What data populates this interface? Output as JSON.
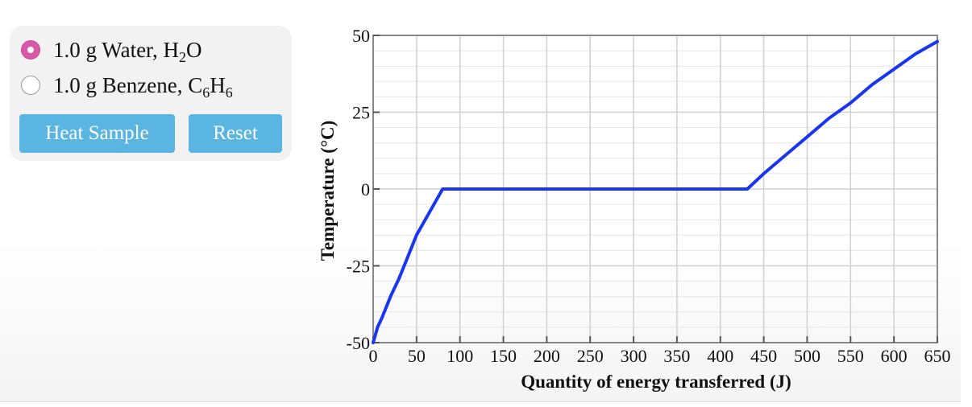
{
  "controls": {
    "options": [
      {
        "label_main": "1.0 g Water, H",
        "sub1": "2",
        "label_tail": "O",
        "sub2": "",
        "label_end": "",
        "selected": true
      },
      {
        "label_main": "1.0 g Benzene, C",
        "sub1": "6",
        "label_tail": "H",
        "sub2": "6",
        "label_end": "",
        "selected": false
      }
    ],
    "heat_button": "Heat Sample",
    "reset_button": "Reset"
  },
  "colors": {
    "radio_selected": "#d858a8",
    "button": "#5bb5e3",
    "series": "#1a35f0",
    "grid": "#d0d0d0"
  },
  "chart_data": {
    "type": "line",
    "xlabel": "Quantity of energy transferred (J)",
    "ylabel": "Temperature (°C)",
    "xlim": [
      0,
      650
    ],
    "ylim": [
      -50,
      50
    ],
    "x_ticks": [
      0,
      50,
      100,
      150,
      200,
      250,
      300,
      350,
      400,
      450,
      500,
      550,
      600,
      650
    ],
    "y_ticks": [
      -50,
      -25,
      0,
      25,
      50
    ],
    "x_tick_labels": [
      "0",
      "50",
      "100",
      "150",
      "200",
      "250",
      "300",
      "350",
      "400",
      "450",
      "500",
      "550",
      "600",
      "650"
    ],
    "y_tick_labels": [
      "-50",
      "-25",
      "0",
      "25",
      "50"
    ],
    "grid": true,
    "series": [
      {
        "x": [
          0,
          5,
          10,
          20,
          30,
          40,
          50,
          60,
          70,
          80,
          90,
          100,
          200,
          300,
          400,
          431,
          450,
          475,
          500,
          525,
          550,
          575,
          600,
          625,
          650
        ],
        "y": [
          -50,
          -45,
          -42,
          -35,
          -29,
          -22,
          -15,
          -10,
          -5,
          0,
          0,
          0,
          0,
          0,
          0,
          0,
          5,
          11,
          17,
          23,
          28,
          34,
          39,
          44,
          48
        ]
      }
    ]
  }
}
